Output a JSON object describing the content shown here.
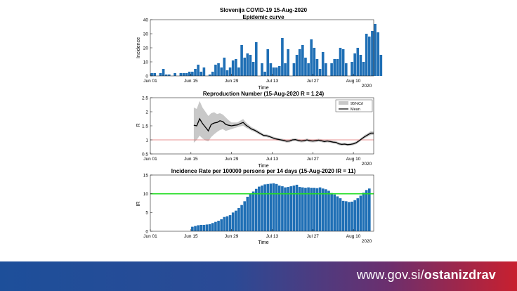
{
  "banner": {
    "url_prefix": "www.gov.si/",
    "url_bold": "ostanizdrav",
    "color_left": "#1d4f9a",
    "color_right": "#c8202f"
  },
  "colors": {
    "bar": "#1f6fb5",
    "mean": "#000000",
    "ci": "#c8c8c8",
    "ref_line": "#e36c6c",
    "ir_line": "#22dd22"
  },
  "xaxis_common": {
    "ticks": [
      "Jun 01",
      "Jun 15",
      "Jun 29",
      "Jul 13",
      "Jul 27",
      "Aug 10"
    ],
    "tick_days": [
      0,
      14,
      28,
      42,
      56,
      70
    ],
    "year_label": "2020",
    "xlabel": "Time",
    "xlim": [
      0,
      77
    ]
  },
  "chart_data": [
    {
      "type": "bar",
      "title": "Slovenija COVID-19 15-Aug-2020",
      "subtitle": "Epidemic curve",
      "ylabel": "Incidence",
      "xlabel": "Time",
      "ylim": [
        0,
        40
      ],
      "yticks": [
        0,
        10,
        20,
        30,
        40
      ],
      "start_day": 0,
      "values": [
        2,
        2,
        0,
        2,
        5,
        1,
        1,
        0,
        2,
        0,
        2,
        2,
        2,
        3,
        3,
        5,
        8,
        3,
        6,
        0,
        1,
        3,
        8,
        9,
        6,
        13,
        4,
        6,
        11,
        12,
        6,
        22,
        13,
        16,
        15,
        10,
        24,
        0,
        9,
        3,
        19,
        9,
        6,
        6,
        7,
        27,
        9,
        19,
        0,
        9,
        15,
        19,
        22,
        13,
        9,
        26,
        20,
        12,
        5,
        17,
        9,
        0,
        9,
        12,
        12,
        20,
        19,
        9,
        0,
        10,
        16,
        20,
        15,
        10,
        30,
        28,
        32,
        37,
        31,
        15
      ]
    },
    {
      "type": "line",
      "title": "Reproduction Number (15-Aug-2020 R = 1.24)",
      "ylabel": "R",
      "xlabel": "Time",
      "ylim": [
        0.5,
        2.5
      ],
      "yticks": [
        0.5,
        1,
        1.5,
        2,
        2.5
      ],
      "legend": [
        "95%CrI",
        "Mean"
      ],
      "legend_position": "top-right",
      "reference_value": 1.0,
      "series": [
        {
          "name": "Mean",
          "x": [
            15,
            16,
            17,
            18,
            19,
            20,
            21,
            22,
            23,
            24,
            25,
            26,
            27,
            28,
            29,
            30,
            31,
            32,
            33,
            34,
            35,
            36,
            37,
            38,
            39,
            40,
            41,
            42,
            43,
            44,
            45,
            46,
            47,
            48,
            49,
            50,
            51,
            52,
            53,
            54,
            55,
            56,
            57,
            58,
            59,
            60,
            61,
            62,
            63,
            64,
            65,
            66,
            67,
            68,
            69,
            70,
            71,
            72,
            73,
            74,
            75,
            76,
            77
          ],
          "y": [
            1.52,
            1.5,
            1.75,
            1.58,
            1.45,
            1.32,
            1.55,
            1.6,
            1.62,
            1.68,
            1.65,
            1.55,
            1.52,
            1.5,
            1.52,
            1.53,
            1.58,
            1.62,
            1.52,
            1.45,
            1.38,
            1.34,
            1.28,
            1.22,
            1.16,
            1.15,
            1.12,
            1.08,
            1.04,
            1.02,
            1.0,
            0.98,
            0.95,
            0.96,
            1.0,
            1.01,
            0.98,
            0.96,
            0.97,
            1.0,
            0.97,
            0.96,
            0.97,
            0.99,
            0.97,
            0.94,
            0.96,
            0.94,
            0.92,
            0.91,
            0.86,
            0.84,
            0.85,
            0.83,
            0.84,
            0.86,
            0.9,
            0.97,
            1.05,
            1.12,
            1.18,
            1.24,
            1.24
          ]
        },
        {
          "name": "95%CrI lower",
          "x": [
            15,
            16,
            17,
            18,
            19,
            20,
            21,
            22,
            23,
            24,
            25,
            26,
            27,
            28,
            29,
            30,
            31,
            32,
            33,
            34,
            35,
            36,
            37,
            38,
            39,
            40,
            41,
            42,
            43,
            44,
            45,
            46,
            47,
            48,
            49,
            50,
            51,
            52,
            53,
            54,
            55,
            56,
            57,
            58,
            59,
            60,
            61,
            62,
            63,
            64,
            65,
            66,
            67,
            68,
            69,
            70,
            71,
            72,
            73,
            74,
            75,
            76,
            77
          ],
          "y": [
            0.9,
            1.0,
            1.15,
            1.05,
            0.98,
            0.95,
            1.1,
            1.2,
            1.28,
            1.35,
            1.38,
            1.32,
            1.35,
            1.38,
            1.42,
            1.45,
            1.48,
            1.5,
            1.43,
            1.38,
            1.32,
            1.28,
            1.22,
            1.17,
            1.11,
            1.1,
            1.07,
            1.03,
            0.99,
            0.97,
            0.95,
            0.93,
            0.9,
            0.91,
            0.95,
            0.96,
            0.93,
            0.91,
            0.92,
            0.95,
            0.92,
            0.91,
            0.92,
            0.94,
            0.92,
            0.89,
            0.91,
            0.89,
            0.87,
            0.86,
            0.81,
            0.79,
            0.8,
            0.78,
            0.79,
            0.81,
            0.85,
            0.92,
            1.0,
            1.06,
            1.12,
            1.17,
            1.18
          ]
        },
        {
          "name": "95%CrI upper",
          "x": [
            15,
            16,
            17,
            18,
            19,
            20,
            21,
            22,
            23,
            24,
            25,
            26,
            27,
            28,
            29,
            30,
            31,
            32,
            33,
            34,
            35,
            36,
            37,
            38,
            39,
            40,
            41,
            42,
            43,
            44,
            45,
            46,
            47,
            48,
            49,
            50,
            51,
            52,
            53,
            54,
            55,
            56,
            57,
            58,
            59,
            60,
            61,
            62,
            63,
            64,
            65,
            66,
            67,
            68,
            69,
            70,
            71,
            72,
            73,
            74,
            75,
            76,
            77
          ],
          "y": [
            2.15,
            2.1,
            2.38,
            2.15,
            2.0,
            1.85,
            1.95,
            1.98,
            1.92,
            1.95,
            1.9,
            1.8,
            1.7,
            1.62,
            1.62,
            1.62,
            1.68,
            1.74,
            1.62,
            1.53,
            1.45,
            1.4,
            1.34,
            1.28,
            1.21,
            1.2,
            1.17,
            1.13,
            1.09,
            1.07,
            1.05,
            1.03,
            1.0,
            1.01,
            1.05,
            1.06,
            1.03,
            1.01,
            1.02,
            1.05,
            1.02,
            1.01,
            1.02,
            1.04,
            1.02,
            0.99,
            1.01,
            0.99,
            0.97,
            0.96,
            0.91,
            0.89,
            0.9,
            0.88,
            0.89,
            0.91,
            0.95,
            1.02,
            1.1,
            1.18,
            1.24,
            1.31,
            1.3
          ]
        }
      ]
    },
    {
      "type": "bar",
      "title": "Incidence Rate per 100000 persons per 14 days (15-Aug-2020 IR = 11)",
      "ylabel": "IR",
      "xlabel": "Time",
      "ylim": [
        0,
        15
      ],
      "yticks": [
        0,
        5,
        10,
        15
      ],
      "reference_value": 10,
      "start_day": 14,
      "values": [
        1.2,
        1.4,
        1.6,
        1.7,
        1.7,
        1.8,
        1.9,
        2.2,
        2.5,
        2.8,
        3.2,
        3.8,
        4.0,
        4.3,
        5.0,
        5.5,
        6.2,
        7.0,
        8.0,
        9.2,
        10.0,
        10.6,
        11.3,
        11.9,
        12.2,
        12.5,
        12.6,
        12.7,
        12.8,
        12.6,
        12.2,
        12.0,
        11.7,
        11.8,
        12.0,
        12.2,
        12.4,
        11.8,
        11.7,
        11.6,
        11.7,
        11.6,
        11.6,
        11.5,
        11.7,
        11.4,
        11.2,
        10.8,
        10.2,
        9.8,
        9.3,
        8.8,
        8.1,
        8.0,
        7.8,
        7.9,
        8.3,
        8.8,
        9.5,
        10.3,
        11.0,
        11.4
      ]
    }
  ]
}
